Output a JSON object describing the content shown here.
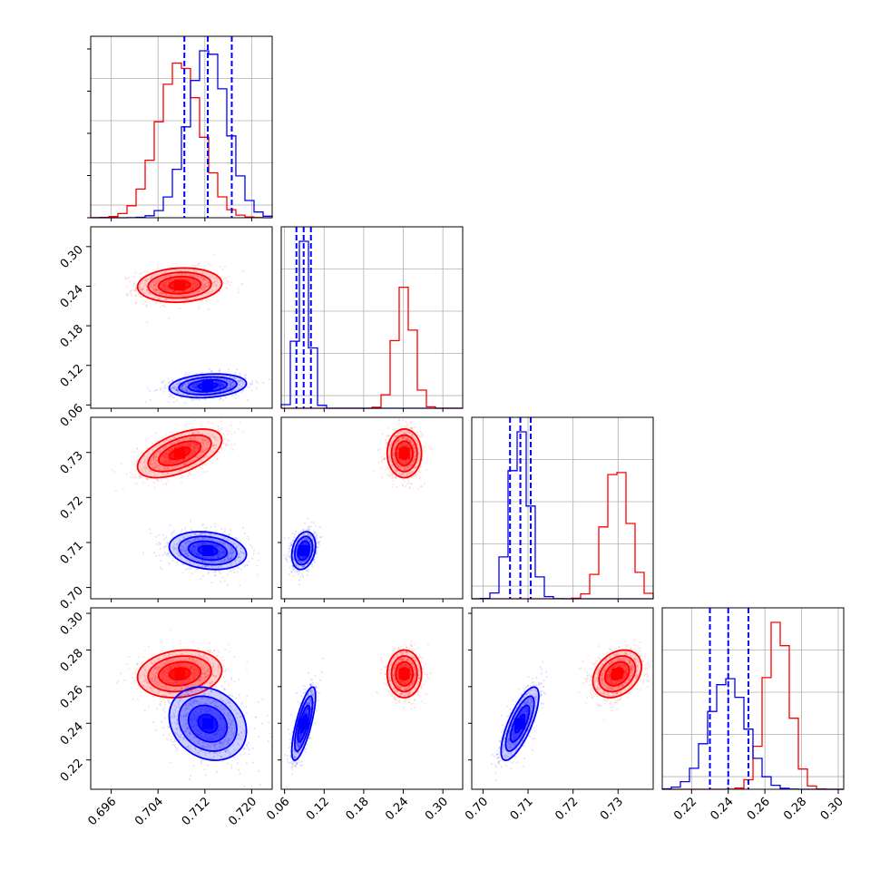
{
  "chart_data": {
    "type": "corner",
    "parameters": 4,
    "series": [
      {
        "color": "#ff0000",
        "means": [
          0.7077,
          0.2416,
          0.7298,
          0.267
        ],
        "stds": [
          0.0036,
          0.013,
          0.0027,
          0.0065
        ],
        "correlations": [
          [
            0,
            1,
            0.1
          ],
          [
            0,
            2,
            0.55
          ],
          [
            0,
            3,
            0.15
          ],
          [
            1,
            2,
            0.0
          ],
          [
            1,
            3,
            0.0
          ],
          [
            2,
            3,
            0.3
          ]
        ]
      },
      {
        "color": "#0000ff",
        "means": [
          0.7125,
          0.089,
          0.7082,
          0.2398
        ],
        "stds": [
          0.0033,
          0.009,
          0.0021,
          0.01
        ],
        "correlations": [
          [
            0,
            1,
            0.2
          ],
          [
            0,
            2,
            -0.2
          ],
          [
            0,
            3,
            -0.2
          ],
          [
            1,
            2,
            0.25
          ],
          [
            1,
            3,
            0.75
          ],
          [
            2,
            3,
            0.75
          ]
        ],
        "quantiles": [
          [
            0.7085,
            0.7125,
            0.7166
          ],
          [
            0.078,
            0.089,
            0.1
          ],
          [
            0.706,
            0.7083,
            0.7106
          ],
          [
            0.23,
            0.24,
            0.251
          ]
        ]
      }
    ],
    "axes": [
      {
        "range": [
          0.6925,
          0.7235
        ],
        "ticks": [
          "0.696",
          "0.704",
          "0.712",
          "0.720"
        ]
      },
      {
        "range": [
          0.055,
          0.33
        ],
        "ticks": [
          "0.06",
          "0.12",
          "0.18",
          "0.24",
          "0.30"
        ]
      },
      {
        "range": [
          0.6975,
          0.7378
        ],
        "ticks": [
          "0.70",
          "0.71",
          "0.72",
          "0.73"
        ]
      },
      {
        "range": [
          0.204,
          0.303
        ],
        "ticks": [
          "0.22",
          "0.24",
          "0.26",
          "0.28",
          "0.30"
        ]
      }
    ],
    "grid": true,
    "legend": "none"
  }
}
